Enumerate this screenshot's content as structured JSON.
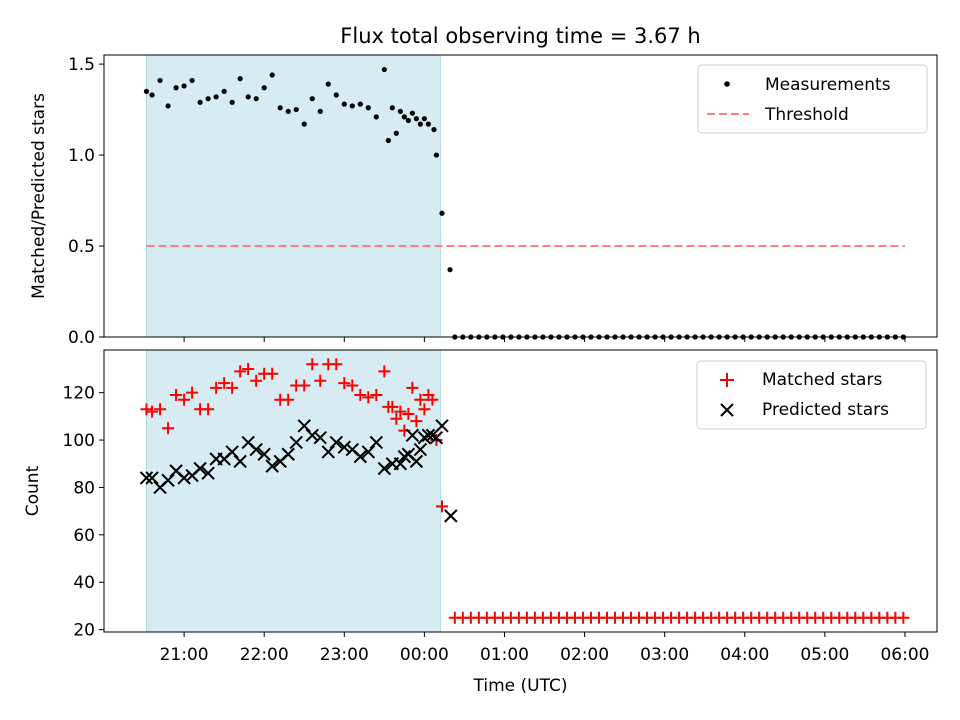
{
  "colors": {
    "shade": "#add8e6",
    "measurement": "#000000",
    "threshold": "#ff7f7f",
    "matched": "#ff0000",
    "predicted": "#000000"
  },
  "chart_data": [
    {
      "type": "scatter",
      "title": "Flux total observing time = 3.67 h",
      "xlabel": "",
      "ylabel": "Matched/Predicted stars",
      "x_unit": "hours since 00:00 UTC (negative = previous evening)",
      "xlim": [
        -4.0,
        6.4
      ],
      "ylim": [
        0.0,
        1.55
      ],
      "yticks": [
        0.0,
        0.5,
        1.0,
        1.5
      ],
      "ytick_labels": [
        "0.0",
        "0.5",
        "1.0",
        "1.5"
      ],
      "shaded_interval": [
        -3.47,
        0.2
      ],
      "legend": {
        "placement": "upper-right",
        "entries": [
          "Measurements",
          "Threshold"
        ]
      },
      "series": [
        {
          "name": "Measurements",
          "marker": "dot",
          "points": [
            [
              -3.47,
              1.35
            ],
            [
              -3.4,
              1.33
            ],
            [
              -3.3,
              1.41
            ],
            [
              -3.2,
              1.27
            ],
            [
              -3.1,
              1.37
            ],
            [
              -3.0,
              1.38
            ],
            [
              -2.9,
              1.41
            ],
            [
              -2.8,
              1.29
            ],
            [
              -2.7,
              1.31
            ],
            [
              -2.6,
              1.32
            ],
            [
              -2.5,
              1.35
            ],
            [
              -2.4,
              1.29
            ],
            [
              -2.3,
              1.42
            ],
            [
              -2.2,
              1.32
            ],
            [
              -2.1,
              1.31
            ],
            [
              -2.0,
              1.37
            ],
            [
              -1.9,
              1.44
            ],
            [
              -1.8,
              1.26
            ],
            [
              -1.7,
              1.24
            ],
            [
              -1.6,
              1.25
            ],
            [
              -1.5,
              1.17
            ],
            [
              -1.4,
              1.31
            ],
            [
              -1.3,
              1.24
            ],
            [
              -1.2,
              1.39
            ],
            [
              -1.1,
              1.33
            ],
            [
              -1.0,
              1.28
            ],
            [
              -0.9,
              1.27
            ],
            [
              -0.8,
              1.28
            ],
            [
              -0.7,
              1.26
            ],
            [
              -0.6,
              1.21
            ],
            [
              -0.5,
              1.47
            ],
            [
              -0.4,
              1.26
            ],
            [
              -0.3,
              1.24
            ],
            [
              -0.2,
              1.19
            ],
            [
              -0.1,
              1.2
            ],
            [
              0.0,
              1.2
            ],
            [
              -0.45,
              1.08
            ],
            [
              -0.35,
              1.12
            ],
            [
              -0.25,
              1.21
            ],
            [
              -0.15,
              1.23
            ],
            [
              -0.05,
              1.17
            ],
            [
              0.05,
              1.17
            ],
            [
              0.12,
              1.14
            ],
            [
              0.15,
              1.0
            ],
            [
              0.22,
              0.68
            ],
            [
              0.32,
              0.37
            ],
            [
              0.38,
              0.0
            ],
            [
              0.48,
              0.0
            ],
            [
              0.58,
              0.0
            ],
            [
              0.68,
              0.0
            ],
            [
              0.78,
              0.0
            ],
            [
              0.88,
              0.0
            ],
            [
              0.98,
              0.0
            ],
            [
              1.08,
              0.0
            ],
            [
              1.18,
              0.0
            ],
            [
              1.28,
              0.0
            ],
            [
              1.38,
              0.0
            ],
            [
              1.48,
              0.0
            ],
            [
              1.58,
              0.0
            ],
            [
              1.68,
              0.0
            ],
            [
              1.78,
              0.0
            ],
            [
              1.88,
              0.0
            ],
            [
              1.98,
              0.0
            ],
            [
              2.08,
              0.0
            ],
            [
              2.18,
              0.0
            ],
            [
              2.28,
              0.0
            ],
            [
              2.38,
              0.0
            ],
            [
              2.48,
              0.0
            ],
            [
              2.58,
              0.0
            ],
            [
              2.68,
              0.0
            ],
            [
              2.78,
              0.0
            ],
            [
              2.88,
              0.0
            ],
            [
              2.98,
              0.0
            ],
            [
              3.08,
              0.0
            ],
            [
              3.18,
              0.0
            ],
            [
              3.28,
              0.0
            ],
            [
              3.38,
              0.0
            ],
            [
              3.48,
              0.0
            ],
            [
              3.58,
              0.0
            ],
            [
              3.68,
              0.0
            ],
            [
              3.78,
              0.0
            ],
            [
              3.88,
              0.0
            ],
            [
              3.98,
              0.0
            ],
            [
              4.08,
              0.0
            ],
            [
              4.18,
              0.0
            ],
            [
              4.28,
              0.0
            ],
            [
              4.38,
              0.0
            ],
            [
              4.48,
              0.0
            ],
            [
              4.58,
              0.0
            ],
            [
              4.68,
              0.0
            ],
            [
              4.78,
              0.0
            ],
            [
              4.88,
              0.0
            ],
            [
              4.98,
              0.0
            ],
            [
              5.08,
              0.0
            ],
            [
              5.18,
              0.0
            ],
            [
              5.28,
              0.0
            ],
            [
              5.38,
              0.0
            ],
            [
              5.48,
              0.0
            ],
            [
              5.58,
              0.0
            ],
            [
              5.68,
              0.0
            ],
            [
              5.78,
              0.0
            ],
            [
              5.88,
              0.0
            ],
            [
              5.98,
              0.0
            ]
          ]
        },
        {
          "name": "Threshold",
          "marker": "dashed-line",
          "points": [
            [
              -3.47,
              0.5
            ],
            [
              6.0,
              0.5
            ]
          ]
        }
      ]
    },
    {
      "type": "scatter",
      "title": "",
      "xlabel": "Time (UTC)",
      "ylabel": "Count",
      "x_unit": "hours since 00:00 UTC (negative = previous evening)",
      "xlim": [
        -4.0,
        6.4
      ],
      "ylim": [
        19,
        138
      ],
      "yticks": [
        20,
        40,
        60,
        80,
        100,
        120
      ],
      "ytick_labels": [
        "20",
        "40",
        "60",
        "80",
        "100",
        "120"
      ],
      "xticks": [
        -3,
        -2,
        -1,
        0,
        1,
        2,
        3,
        4,
        5,
        6
      ],
      "xtick_labels": [
        "21:00",
        "22:00",
        "23:00",
        "00:00",
        "01:00",
        "02:00",
        "03:00",
        "04:00",
        "05:00",
        "06:00"
      ],
      "shaded_interval": [
        -3.47,
        0.2
      ],
      "legend": {
        "placement": "upper-right",
        "entries": [
          "Matched stars",
          "Predicted stars"
        ]
      },
      "series": [
        {
          "name": "Matched stars",
          "marker": "plus",
          "points": [
            [
              -3.47,
              113
            ],
            [
              -3.4,
              112
            ],
            [
              -3.3,
              113
            ],
            [
              -3.2,
              105
            ],
            [
              -3.1,
              119
            ],
            [
              -3.0,
              117
            ],
            [
              -2.9,
              120
            ],
            [
              -2.8,
              113
            ],
            [
              -2.7,
              113
            ],
            [
              -2.6,
              122
            ],
            [
              -2.5,
              124
            ],
            [
              -2.4,
              122
            ],
            [
              -2.3,
              129
            ],
            [
              -2.2,
              130
            ],
            [
              -2.1,
              125
            ],
            [
              -2.0,
              128
            ],
            [
              -1.9,
              128
            ],
            [
              -1.8,
              117
            ],
            [
              -1.7,
              117
            ],
            [
              -1.6,
              123
            ],
            [
              -1.5,
              123
            ],
            [
              -1.4,
              132
            ],
            [
              -1.3,
              125
            ],
            [
              -1.2,
              132
            ],
            [
              -1.1,
              132
            ],
            [
              -1.0,
              124
            ],
            [
              -0.9,
              123
            ],
            [
              -0.8,
              119
            ],
            [
              -0.7,
              118
            ],
            [
              -0.6,
              119
            ],
            [
              -0.5,
              129
            ],
            [
              -0.4,
              114
            ],
            [
              -0.3,
              112
            ],
            [
              -0.2,
              111
            ],
            [
              -0.1,
              108
            ],
            [
              0.0,
              113
            ],
            [
              -0.45,
              114
            ],
            [
              -0.35,
              109
            ],
            [
              -0.25,
              104
            ],
            [
              -0.15,
              122
            ],
            [
              -0.05,
              117
            ],
            [
              0.05,
              119
            ],
            [
              0.1,
              117
            ],
            [
              0.15,
              100
            ],
            [
              0.22,
              72
            ],
            [
              0.38,
              25
            ],
            [
              0.48,
              25
            ],
            [
              0.58,
              25
            ],
            [
              0.68,
              25
            ],
            [
              0.78,
              25
            ],
            [
              0.88,
              25
            ],
            [
              0.98,
              25
            ],
            [
              1.08,
              25
            ],
            [
              1.18,
              25
            ],
            [
              1.28,
              25
            ],
            [
              1.38,
              25
            ],
            [
              1.48,
              25
            ],
            [
              1.58,
              25
            ],
            [
              1.68,
              25
            ],
            [
              1.78,
              25
            ],
            [
              1.88,
              25
            ],
            [
              1.98,
              25
            ],
            [
              2.08,
              25
            ],
            [
              2.18,
              25
            ],
            [
              2.28,
              25
            ],
            [
              2.38,
              25
            ],
            [
              2.48,
              25
            ],
            [
              2.58,
              25
            ],
            [
              2.68,
              25
            ],
            [
              2.78,
              25
            ],
            [
              2.88,
              25
            ],
            [
              2.98,
              25
            ],
            [
              3.08,
              25
            ],
            [
              3.18,
              25
            ],
            [
              3.28,
              25
            ],
            [
              3.38,
              25
            ],
            [
              3.48,
              25
            ],
            [
              3.58,
              25
            ],
            [
              3.68,
              25
            ],
            [
              3.78,
              25
            ],
            [
              3.88,
              25
            ],
            [
              3.98,
              25
            ],
            [
              4.08,
              25
            ],
            [
              4.18,
              25
            ],
            [
              4.28,
              25
            ],
            [
              4.38,
              25
            ],
            [
              4.48,
              25
            ],
            [
              4.58,
              25
            ],
            [
              4.68,
              25
            ],
            [
              4.78,
              25
            ],
            [
              4.88,
              25
            ],
            [
              4.98,
              25
            ],
            [
              5.08,
              25
            ],
            [
              5.18,
              25
            ],
            [
              5.28,
              25
            ],
            [
              5.38,
              25
            ],
            [
              5.48,
              25
            ],
            [
              5.58,
              25
            ],
            [
              5.68,
              25
            ],
            [
              5.78,
              25
            ],
            [
              5.88,
              25
            ],
            [
              5.98,
              25
            ]
          ]
        },
        {
          "name": "Predicted stars",
          "marker": "x",
          "points": [
            [
              -3.47,
              84
            ],
            [
              -3.4,
              84
            ],
            [
              -3.3,
              80
            ],
            [
              -3.2,
              83
            ],
            [
              -3.1,
              87
            ],
            [
              -3.0,
              84
            ],
            [
              -2.9,
              85
            ],
            [
              -2.8,
              88
            ],
            [
              -2.7,
              86
            ],
            [
              -2.6,
              92
            ],
            [
              -2.5,
              92
            ],
            [
              -2.4,
              95
            ],
            [
              -2.3,
              91
            ],
            [
              -2.2,
              99
            ],
            [
              -2.1,
              96
            ],
            [
              -2.0,
              94
            ],
            [
              -1.9,
              89
            ],
            [
              -1.8,
              91
            ],
            [
              -1.7,
              94
            ],
            [
              -1.6,
              99
            ],
            [
              -1.5,
              106
            ],
            [
              -1.4,
              102
            ],
            [
              -1.3,
              101
            ],
            [
              -1.2,
              95
            ],
            [
              -1.1,
              99
            ],
            [
              -1.0,
              97
            ],
            [
              -0.9,
              96
            ],
            [
              -0.8,
              93
            ],
            [
              -0.7,
              95
            ],
            [
              -0.6,
              99
            ],
            [
              -0.5,
              88
            ],
            [
              -0.4,
              90
            ],
            [
              -0.3,
              90
            ],
            [
              -0.2,
              94
            ],
            [
              -0.1,
              91
            ],
            [
              0.0,
              101
            ],
            [
              -0.25,
              93
            ],
            [
              -0.15,
              102
            ],
            [
              -0.05,
              96
            ],
            [
              0.05,
              102
            ],
            [
              0.1,
              102
            ],
            [
              0.15,
              101
            ],
            [
              0.22,
              106
            ],
            [
              0.33,
              68
            ]
          ]
        }
      ]
    }
  ]
}
